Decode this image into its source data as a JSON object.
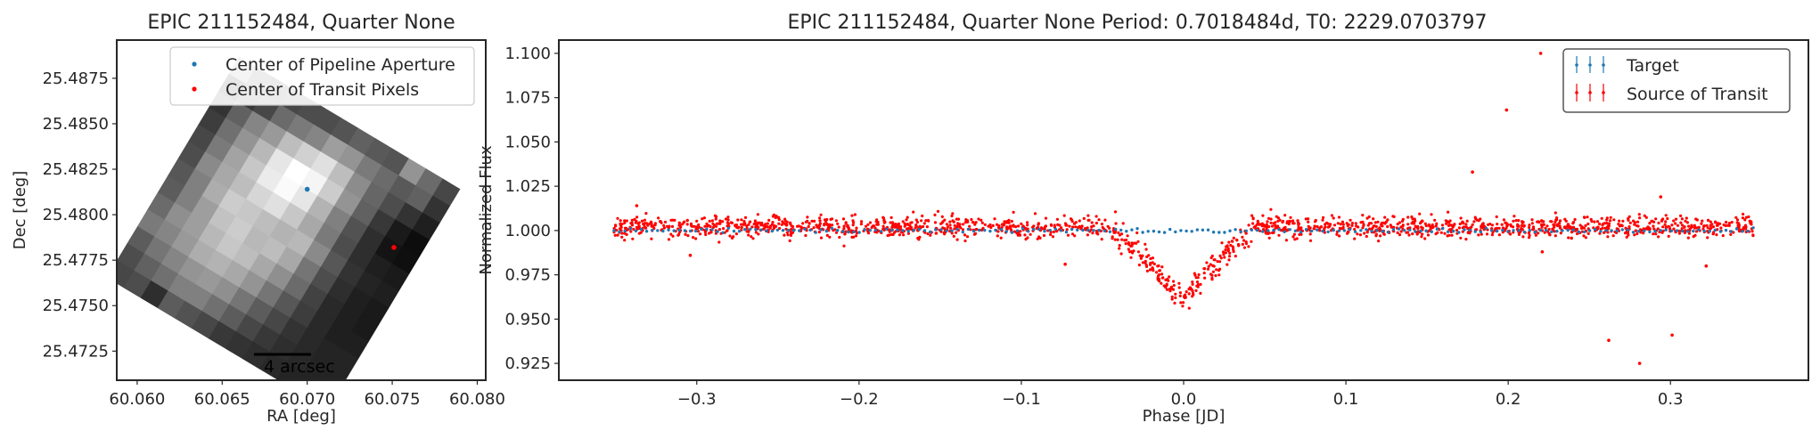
{
  "chart_data": [
    {
      "type": "heatmap",
      "title": "EPIC 211152484, Quarter None",
      "xlabel": "RA [deg]",
      "ylabel": "Dec [deg]",
      "xlim": [
        60.0588,
        60.0805
      ],
      "ylim": [
        25.4709,
        25.4896
      ],
      "xticks": [
        "60.060",
        "60.065",
        "60.070",
        "60.075",
        "60.080"
      ],
      "yticks": [
        "25.4725",
        "25.4750",
        "25.4775",
        "25.4800",
        "25.4825",
        "25.4850",
        "25.4875"
      ],
      "legend": {
        "placement": "top-right",
        "entries": [
          {
            "label": "Center of Pipeline Aperture",
            "color": "#1f77b4"
          },
          {
            "label": "Center of Transit Pixels",
            "color": "#ff0000"
          }
        ]
      },
      "points": [
        {
          "series": "Center of Pipeline Aperture",
          "x": 60.07,
          "y": 25.4814
        },
        {
          "series": "Center of Transit Pixels",
          "x": 60.0751,
          "y": 25.4782
        }
      ],
      "scalebar_label": "4 arcsec",
      "colormap": "gray",
      "image_grid": {
        "rows": 13,
        "cols": 13,
        "values": [
          [
            0.55,
            0.28,
            0.22,
            0.28,
            0.3,
            0.3,
            0.33,
            0.38,
            0.35,
            0.33,
            0.58,
            0.42,
            0.28
          ],
          [
            0.03,
            0.22,
            0.28,
            0.42,
            0.48,
            0.52,
            0.62,
            0.58,
            0.48,
            0.42,
            0.35,
            0.38,
            0.2
          ],
          [
            0.2,
            0.38,
            0.52,
            0.6,
            0.74,
            0.82,
            0.88,
            0.74,
            0.55,
            0.4,
            0.3,
            0.2,
            0.12
          ],
          [
            0.24,
            0.44,
            0.58,
            0.72,
            0.9,
            1.0,
            0.96,
            0.8,
            0.58,
            0.38,
            0.22,
            0.1,
            0.05
          ],
          [
            0.28,
            0.48,
            0.64,
            0.78,
            0.92,
            0.98,
            0.9,
            0.7,
            0.5,
            0.32,
            0.18,
            0.08,
            0.06
          ],
          [
            0.3,
            0.54,
            0.66,
            0.74,
            0.84,
            0.88,
            0.78,
            0.66,
            0.48,
            0.3,
            0.18,
            0.12,
            0.1
          ],
          [
            0.34,
            0.5,
            0.68,
            0.8,
            0.78,
            0.74,
            0.7,
            0.72,
            0.54,
            0.34,
            0.2,
            0.14,
            0.12
          ],
          [
            0.36,
            0.5,
            0.62,
            0.76,
            0.8,
            0.72,
            0.74,
            0.66,
            0.46,
            0.3,
            0.18,
            0.12,
            0.1
          ],
          [
            0.42,
            0.56,
            0.62,
            0.72,
            0.78,
            0.74,
            0.66,
            0.56,
            0.42,
            0.26,
            0.16,
            0.12,
            0.1
          ],
          [
            0.48,
            0.52,
            0.6,
            0.68,
            0.7,
            0.66,
            0.58,
            0.46,
            0.34,
            0.24,
            0.16,
            0.12,
            0.12
          ],
          [
            0.36,
            0.46,
            0.52,
            0.58,
            0.6,
            0.56,
            0.46,
            0.36,
            0.28,
            0.2,
            0.16,
            0.14,
            0.14
          ],
          [
            0.3,
            0.38,
            0.44,
            0.5,
            0.5,
            0.44,
            0.36,
            0.28,
            0.22,
            0.18,
            0.16,
            0.14,
            0.14
          ],
          [
            0.28,
            0.3,
            0.18,
            0.36,
            0.32,
            0.28,
            0.22,
            0.2,
            0.18,
            0.16,
            0.14,
            0.14,
            0.14
          ]
        ]
      }
    },
    {
      "type": "scatter",
      "title": "EPIC 211152484, Quarter None Period: 0.7018484d, T0: 2229.0703797",
      "xlabel": "Phase [JD]",
      "ylabel": "Normalized Flux",
      "xlim": [
        -0.385,
        0.385
      ],
      "ylim": [
        0.9155,
        1.1075
      ],
      "xticks": [
        "−0.3",
        "−0.2",
        "−0.1",
        "0.0",
        "0.1",
        "0.2",
        "0.3"
      ],
      "yticks": [
        "0.925",
        "0.950",
        "0.975",
        "1.000",
        "1.025",
        "1.050",
        "1.075",
        "1.100"
      ],
      "grid": false,
      "legend": {
        "placement": "top-right",
        "entries": [
          {
            "label": "Target",
            "color": "#1f77b4"
          },
          {
            "label": "Source of Transit",
            "color": "#ff0000"
          }
        ]
      },
      "series": [
        {
          "name": "Target",
          "color": "#1f77b4",
          "description_values": {
            "x_range": [
              -0.351,
              0.351
            ],
            "y": 1.0,
            "scatter": 0.001,
            "n_points": 210
          }
        },
        {
          "name": "Source of Transit",
          "color": "#ff0000",
          "baseline": 1.002,
          "scatter": 0.003,
          "transit": {
            "center": 0.0,
            "half_width": 0.045,
            "depth": 0.042
          },
          "n_points": 1800,
          "outliers": [
            {
              "x": 0.22,
              "y": 1.1
            },
            {
              "x": 0.199,
              "y": 1.068
            },
            {
              "x": 0.178,
              "y": 1.033
            },
            {
              "x": 0.294,
              "y": 1.019
            },
            {
              "x": 0.262,
              "y": 0.938
            },
            {
              "x": 0.281,
              "y": 0.925
            },
            {
              "x": 0.301,
              "y": 0.941
            },
            {
              "x": 0.322,
              "y": 0.98
            },
            {
              "x": -0.337,
              "y": 1.014
            },
            {
              "x": -0.304,
              "y": 0.986
            },
            {
              "x": -0.073,
              "y": 0.981
            },
            {
              "x": 0.221,
              "y": 0.988
            }
          ]
        }
      ]
    }
  ]
}
